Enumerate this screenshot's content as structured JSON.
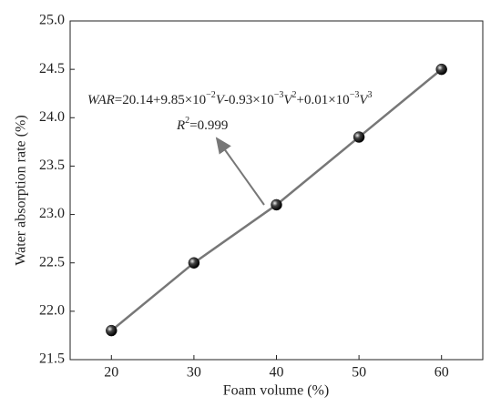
{
  "chart_data": {
    "type": "scatter",
    "x_label": "Foam volume (%)",
    "y_label": "Water absorption rate (%)",
    "x": [
      20,
      30,
      40,
      50,
      60
    ],
    "series": [
      {
        "color": "#111111",
        "line_color": "#777777",
        "values": [
          21.8,
          22.5,
          23.1,
          23.8,
          24.5
        ]
      }
    ],
    "xlim": [
      15,
      65
    ],
    "xticks": [
      20,
      30,
      40,
      50,
      60
    ],
    "ylim": [
      21.5,
      25.0
    ],
    "yticks": [
      21.5,
      {
        "value": 22,
        "label": "22.0"
      },
      22.5,
      {
        "value": 23,
        "label": "23.0"
      },
      23.5,
      {
        "value": 24,
        "label": "24.0"
      },
      24.5,
      {
        "value": 25,
        "label": "25.0"
      }
    ],
    "equation": [
      "WAR",
      "=20.14+9.85×10",
      "−2",
      "V",
      "-0.93×10",
      "−3",
      "V",
      "2",
      "+0.01×10",
      "−3",
      "V",
      "3"
    ],
    "r_squared": [
      "R",
      "2",
      "=0.999"
    ]
  }
}
